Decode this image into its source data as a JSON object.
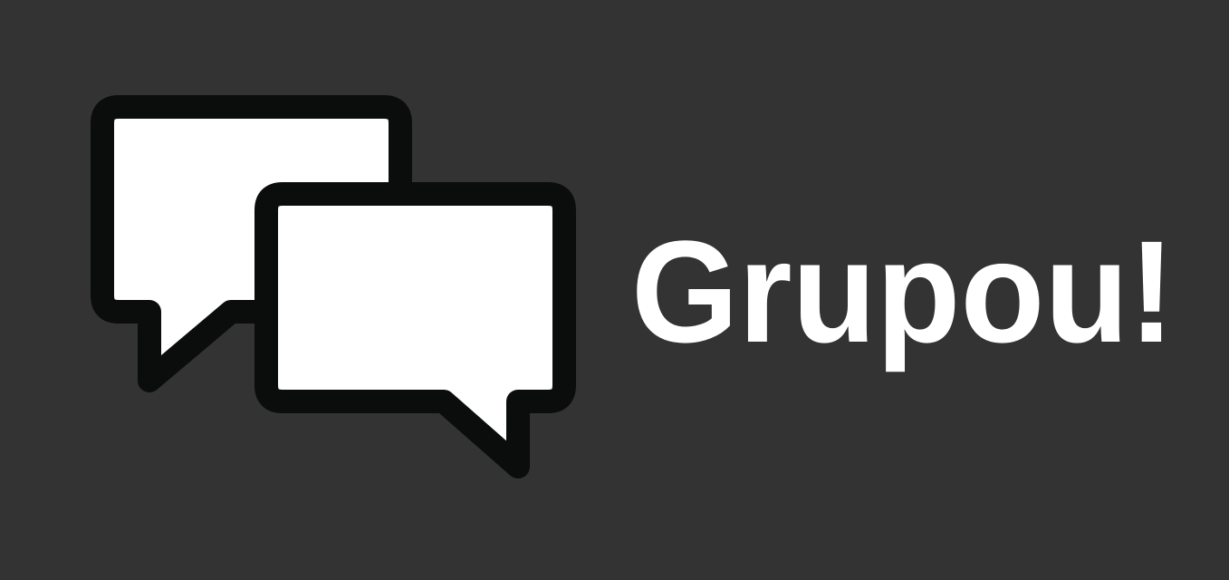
{
  "logo": {
    "text": "Grupou!"
  }
}
